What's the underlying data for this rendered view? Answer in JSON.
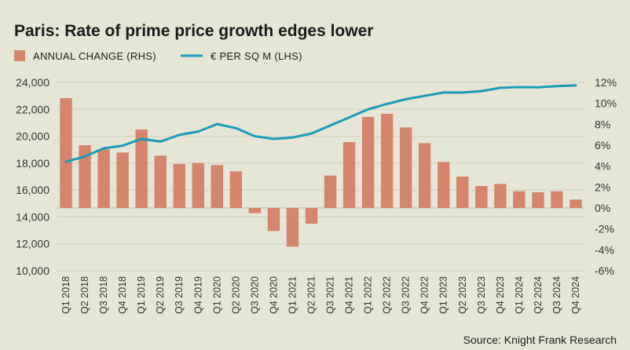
{
  "colors": {
    "background": "#e6e6d7",
    "bar": "#d4856b",
    "line": "#1a9bb8",
    "grid": "#d0d0c0",
    "text": "#1a1a1a",
    "tick_text": "#333333",
    "zero_line": "#b8b8a8"
  },
  "legend": {
    "bar_label": "ANNUAL CHANGE (RHS)",
    "line_label": "€ PER SQ M (LHS)"
  },
  "source": "Source: Knight Frank Research",
  "chart_data": {
    "type": "bar",
    "title": "Paris: Rate of prime price growth edges lower",
    "categories": [
      "Q1 2018",
      "Q2 2018",
      "Q3 2018",
      "Q4 2018",
      "Q1 2019",
      "Q2 2019",
      "Q3 2019",
      "Q4 2019",
      "Q1 2020",
      "Q2 2020",
      "Q3 2020",
      "Q4 2020",
      "Q1 2021",
      "Q2 2021",
      "Q3 2021",
      "Q4 2021",
      "Q1 2022",
      "Q2 2022",
      "Q3 2022",
      "Q4 2022",
      "Q1 2023",
      "Q2 2023",
      "Q3 2023",
      "Q4 2023",
      "Q1 2024",
      "Q2 2024",
      "Q3 2024",
      "Q4 2024"
    ],
    "series": [
      {
        "name": "ANNUAL CHANGE (RHS)",
        "type": "bar",
        "axis": "right",
        "values": [
          10.5,
          6.0,
          5.6,
          5.3,
          7.5,
          5.0,
          4.2,
          4.3,
          4.1,
          3.5,
          -0.5,
          -2.2,
          -3.7,
          -1.5,
          3.1,
          6.3,
          8.7,
          9.0,
          7.7,
          6.2,
          4.4,
          3.0,
          2.1,
          2.3,
          1.6,
          1.5,
          1.6,
          0.8
        ]
      },
      {
        "name": "€ PER SQ M (LHS)",
        "type": "line",
        "axis": "left",
        "values": [
          18100,
          18500,
          19100,
          19300,
          19800,
          19600,
          20100,
          20350,
          20900,
          20600,
          20000,
          19800,
          19900,
          20200,
          20800,
          21400,
          22000,
          22400,
          22750,
          23000,
          23250,
          23250,
          23350,
          23600,
          23650,
          23630,
          23720,
          23780
        ]
      }
    ],
    "y_left": {
      "ylim": [
        10000,
        24000
      ],
      "ticks": [
        "10,000",
        "12,000",
        "14,000",
        "16,000",
        "18,000",
        "20,000",
        "22,000",
        "24,000"
      ]
    },
    "y_right": {
      "ylim": [
        -6,
        12
      ],
      "ticks": [
        "-6%",
        "-4%",
        "-2%",
        "0%",
        "2%",
        "4%",
        "6%",
        "8%",
        "10%",
        "12%"
      ]
    },
    "grid": true,
    "legend_position": "top-left"
  }
}
